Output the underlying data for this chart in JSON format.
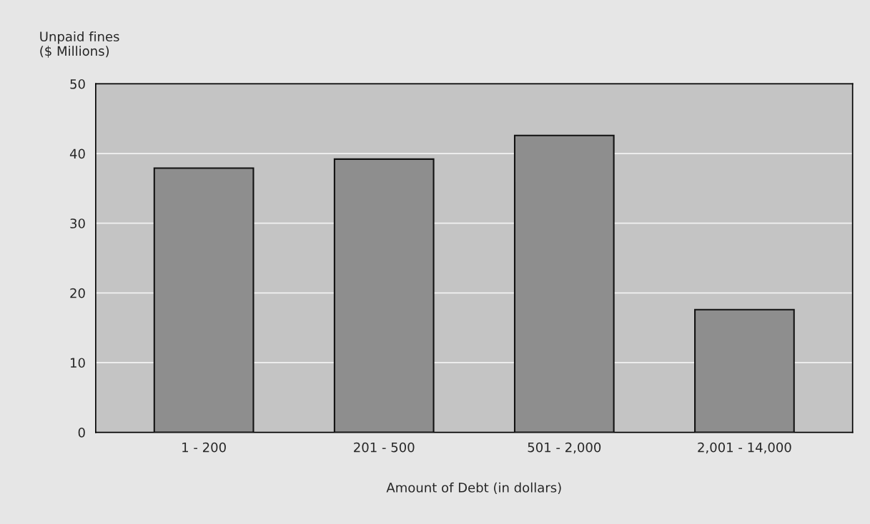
{
  "chart_data": {
    "type": "bar",
    "ylabel": "Unpaid fines\n($ Millions)",
    "xlabel": "Amount of Debt (in dollars)",
    "categories": [
      "1 - 200",
      "201 - 500",
      "501 - 2,000",
      "2,001 - 14,000"
    ],
    "values": [
      37.9,
      39.2,
      42.6,
      17.6
    ],
    "color": "#8e8e8e",
    "ylim": [
      0,
      50
    ],
    "yticks": [
      0,
      10,
      20,
      30,
      40,
      50
    ],
    "grid": "y"
  }
}
